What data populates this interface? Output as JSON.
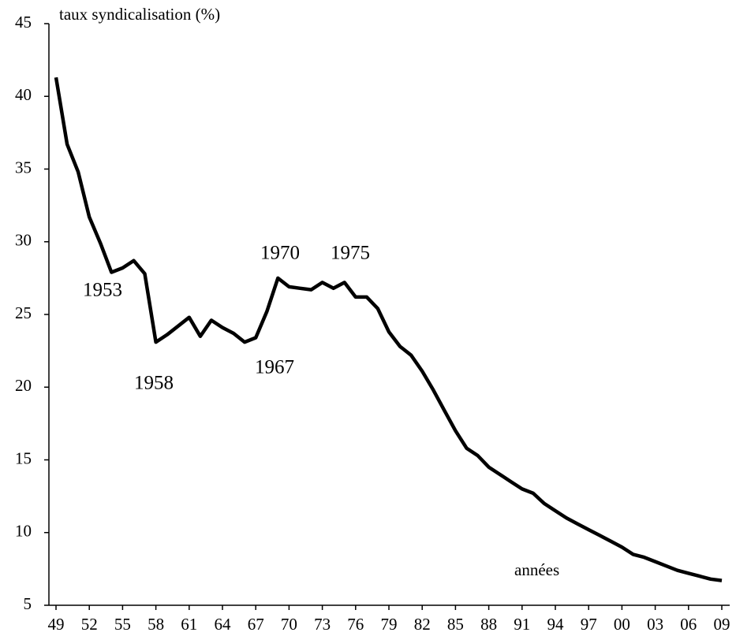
{
  "chart_data": {
    "type": "line",
    "title": "taux syndicalisation  (%)",
    "x_label": "années",
    "annotations": [
      "1953",
      "1958",
      "1967",
      "1970",
      "1975"
    ],
    "categories": [
      "49",
      null,
      null,
      "52",
      null,
      null,
      "55",
      null,
      null,
      "58",
      null,
      null,
      "61",
      null,
      null,
      "64",
      null,
      null,
      "67",
      null,
      null,
      "70",
      null,
      null,
      "73",
      null,
      null,
      "76",
      null,
      null,
      "79",
      null,
      null,
      "82",
      null,
      null,
      "85",
      null,
      null,
      "88",
      null,
      null,
      "91",
      null,
      null,
      "94",
      null,
      null,
      "97",
      null,
      null,
      "00",
      null,
      null,
      "03",
      null,
      null,
      "06",
      null,
      null,
      "09"
    ],
    "series": [
      {
        "name": "taux syndicalisation",
        "color": "#000000",
        "values": [
          41.3,
          36.7,
          34.8,
          31.7,
          29.9,
          27.9,
          28.2,
          28.7,
          27.8,
          23.1,
          23.6,
          24.2,
          24.8,
          23.5,
          24.6,
          24.1,
          23.7,
          23.1,
          23.4,
          25.2,
          27.5,
          26.9,
          26.8,
          26.7,
          27.2,
          26.8,
          27.2,
          26.2,
          26.2,
          25.4,
          23.8,
          22.8,
          22.2,
          21.1,
          19.8,
          18.4,
          17.0,
          15.8,
          15.3,
          14.5,
          14.0,
          13.5,
          13.0,
          12.7,
          12.0,
          11.5,
          11.0,
          10.6,
          10.2,
          9.8,
          9.4,
          9.0,
          8.5,
          8.3,
          8.0,
          7.7,
          7.4,
          7.2,
          7.0,
          6.8,
          6.7
        ]
      }
    ],
    "ylim": [
      5,
      45
    ],
    "yticks": [
      5,
      10,
      15,
      20,
      25,
      30,
      35,
      40,
      45
    ],
    "grid": false
  }
}
